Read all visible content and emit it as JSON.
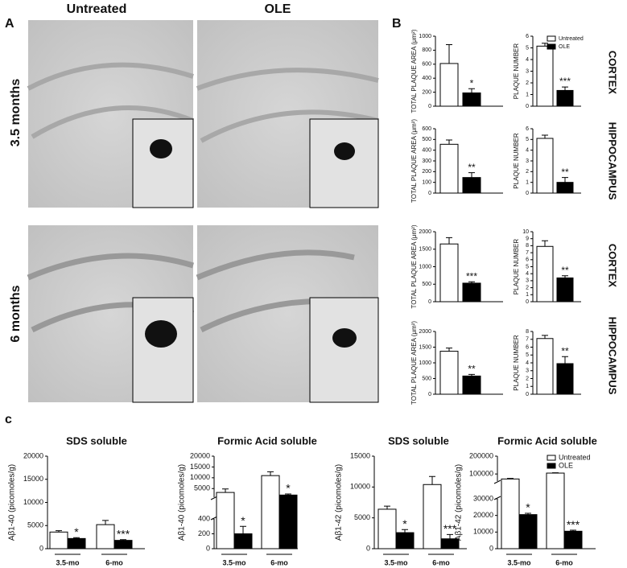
{
  "panel_a": {
    "label": "A",
    "columns": [
      "Untreated",
      "OLE"
    ],
    "rows": [
      "3.5 months",
      "6 months"
    ]
  },
  "panel_b": {
    "label": "B",
    "rows": [
      "CORTEX",
      "HIPPOCAMPUS",
      "CORTEX",
      "HIPPOCAMPUS"
    ]
  },
  "panel_c": {
    "label": "c"
  },
  "chart_data": [
    {
      "type": "bar",
      "ylabel": "TOTAL PLAQUE AREA (μm²)",
      "ylim": [
        0,
        1000
      ],
      "yticks": [
        0,
        200,
        400,
        600,
        800,
        1000
      ],
      "legend": false,
      "series": [
        {
          "name": "Untreated",
          "color": "#ffffff",
          "values": [
            610
          ],
          "errors": [
            270
          ]
        },
        {
          "name": "OLE",
          "color": "#000000",
          "values": [
            190
          ],
          "errors": [
            60
          ],
          "significance": [
            "*"
          ]
        }
      ]
    },
    {
      "type": "bar",
      "ylabel": "PLAQUE NUMBER",
      "ylim": [
        0,
        6
      ],
      "yticks": [
        0,
        1,
        2,
        3,
        4,
        5,
        6
      ],
      "legend": true,
      "series": [
        {
          "name": "Untreated",
          "color": "#ffffff",
          "values": [
            5.15
          ],
          "errors": [
            0.25
          ]
        },
        {
          "name": "OLE",
          "color": "#000000",
          "values": [
            1.35
          ],
          "errors": [
            0.3
          ],
          "significance": [
            "***"
          ]
        }
      ]
    },
    {
      "type": "bar",
      "ylabel": "TOTAL PLAQUE AREA (μm²)",
      "ylim": [
        0,
        600
      ],
      "yticks": [
        0,
        100,
        200,
        300,
        400,
        500,
        600
      ],
      "legend": false,
      "series": [
        {
          "name": "Untreated",
          "color": "#ffffff",
          "values": [
            455
          ],
          "errors": [
            40
          ]
        },
        {
          "name": "OLE",
          "color": "#000000",
          "values": [
            145
          ],
          "errors": [
            45
          ],
          "significance": [
            "**"
          ]
        }
      ]
    },
    {
      "type": "bar",
      "ylabel": "PLAQUE NUMBER",
      "ylim": [
        0,
        6
      ],
      "yticks": [
        0,
        1,
        2,
        3,
        4,
        5,
        6
      ],
      "legend": false,
      "series": [
        {
          "name": "Untreated",
          "color": "#ffffff",
          "values": [
            5.1
          ],
          "errors": [
            0.3
          ]
        },
        {
          "name": "OLE",
          "color": "#000000",
          "values": [
            1.0
          ],
          "errors": [
            0.45
          ],
          "significance": [
            "**"
          ]
        }
      ]
    },
    {
      "type": "bar",
      "ylabel": "TOTAL PLAQUE AREA (μm²)",
      "ylim": [
        0,
        2000
      ],
      "yticks": [
        0,
        500,
        1000,
        1500,
        2000
      ],
      "legend": false,
      "series": [
        {
          "name": "Untreated",
          "color": "#ffffff",
          "values": [
            1650
          ],
          "errors": [
            180
          ]
        },
        {
          "name": "OLE",
          "color": "#000000",
          "values": [
            530
          ],
          "errors": [
            40
          ],
          "significance": [
            "***"
          ]
        }
      ]
    },
    {
      "type": "bar",
      "ylabel": "PLAQUE NUMBER",
      "ylim": [
        0,
        10
      ],
      "yticks": [
        0,
        1,
        2,
        3,
        4,
        5,
        6,
        7,
        8,
        9,
        10
      ],
      "legend": false,
      "series": [
        {
          "name": "Untreated",
          "color": "#ffffff",
          "values": [
            7.9
          ],
          "errors": [
            0.8
          ]
        },
        {
          "name": "OLE",
          "color": "#000000",
          "values": [
            3.4
          ],
          "errors": [
            0.3
          ],
          "significance": [
            "**"
          ]
        }
      ]
    },
    {
      "type": "bar",
      "ylabel": "TOTAL PLAQUE AREA (μm²)",
      "ylim": [
        0,
        2000
      ],
      "yticks": [
        0,
        500,
        1000,
        1500,
        2000
      ],
      "legend": false,
      "series": [
        {
          "name": "Untreated",
          "color": "#ffffff",
          "values": [
            1370
          ],
          "errors": [
            100
          ]
        },
        {
          "name": "OLE",
          "color": "#000000",
          "values": [
            580
          ],
          "errors": [
            50
          ],
          "significance": [
            "**"
          ]
        }
      ]
    },
    {
      "type": "bar",
      "ylabel": "PLAQUE NUMBER",
      "ylim": [
        0,
        8
      ],
      "yticks": [
        0,
        1,
        2,
        3,
        4,
        5,
        6,
        7,
        8
      ],
      "legend": false,
      "series": [
        {
          "name": "Untreated",
          "color": "#ffffff",
          "values": [
            7.1
          ],
          "errors": [
            0.4
          ]
        },
        {
          "name": "OLE",
          "color": "#000000",
          "values": [
            3.9
          ],
          "errors": [
            0.9
          ],
          "significance": [
            "**"
          ]
        }
      ]
    },
    {
      "type": "bar",
      "title": "SDS soluble",
      "ylabel": "Aβ1-40 (picomoles/g)",
      "categories": [
        "3.5-mo",
        "6-mo"
      ],
      "ylim": [
        0,
        20000
      ],
      "yticks": [
        0,
        5000,
        10000,
        15000,
        20000
      ],
      "legend": false,
      "series": [
        {
          "name": "Untreated",
          "color": "#ffffff",
          "values": [
            3600,
            5200
          ],
          "errors": [
            300,
            900
          ]
        },
        {
          "name": "OLE",
          "color": "#000000",
          "values": [
            2200,
            1800
          ],
          "errors": [
            200,
            150
          ],
          "significance": [
            "*",
            "***"
          ]
        }
      ]
    },
    {
      "type": "bar",
      "title": "Formic Acid soluble",
      "ylabel": "Aβ1-40 (picomoles/g)",
      "categories": [
        "3.5-mo",
        "6-mo"
      ],
      "y_segments": [
        {
          "ylim": [
            0,
            400
          ],
          "yticks": [
            0,
            200,
            400
          ]
        },
        {
          "ylim": [
            1000,
            20000
          ],
          "yticks": [
            5000,
            10000,
            15000,
            20000
          ]
        }
      ],
      "legend": false,
      "series": [
        {
          "name": "Untreated",
          "color": "#ffffff",
          "values": [
            3200,
            11000
          ],
          "errors": [
            1600,
            1800
          ]
        },
        {
          "name": "OLE",
          "color": "#000000",
          "values": [
            200,
            2000
          ],
          "errors": [
            100,
            500
          ],
          "significance": [
            "*",
            "*"
          ]
        }
      ]
    },
    {
      "type": "bar",
      "title": "SDS soluble",
      "ylabel": "Aβ1-42 (picomoles/g)",
      "categories": [
        "3.5-mo",
        "6-mo"
      ],
      "ylim": [
        0,
        15000
      ],
      "yticks": [
        0,
        5000,
        10000,
        15000
      ],
      "legend": false,
      "series": [
        {
          "name": "Untreated",
          "color": "#ffffff",
          "values": [
            6400,
            10400
          ],
          "errors": [
            500,
            1300
          ]
        },
        {
          "name": "OLE",
          "color": "#000000",
          "values": [
            2600,
            1600
          ],
          "errors": [
            500,
            700
          ],
          "significance": [
            "*",
            "***"
          ]
        }
      ]
    },
    {
      "type": "bar",
      "title": "Formic Acid soluble",
      "ylabel": "Aβ1-42 (picomoles/g)",
      "categories": [
        "3.5-mo",
        "6-mo"
      ],
      "y_segments": [
        {
          "ylim": [
            0,
            30000
          ],
          "yticks": [
            0,
            10000,
            20000,
            30000
          ]
        },
        {
          "ylim": [
            60000,
            200000
          ],
          "yticks": [
            100000,
            200000
          ]
        }
      ],
      "legend": true,
      "series": [
        {
          "name": "Untreated",
          "color": "#ffffff",
          "values": [
            72000,
            105000
          ],
          "errors": [
            3000,
            2000
          ]
        },
        {
          "name": "OLE",
          "color": "#000000",
          "values": [
            20500,
            10500
          ],
          "errors": [
            800,
            600
          ],
          "significance": [
            "*",
            "***"
          ]
        }
      ]
    }
  ]
}
